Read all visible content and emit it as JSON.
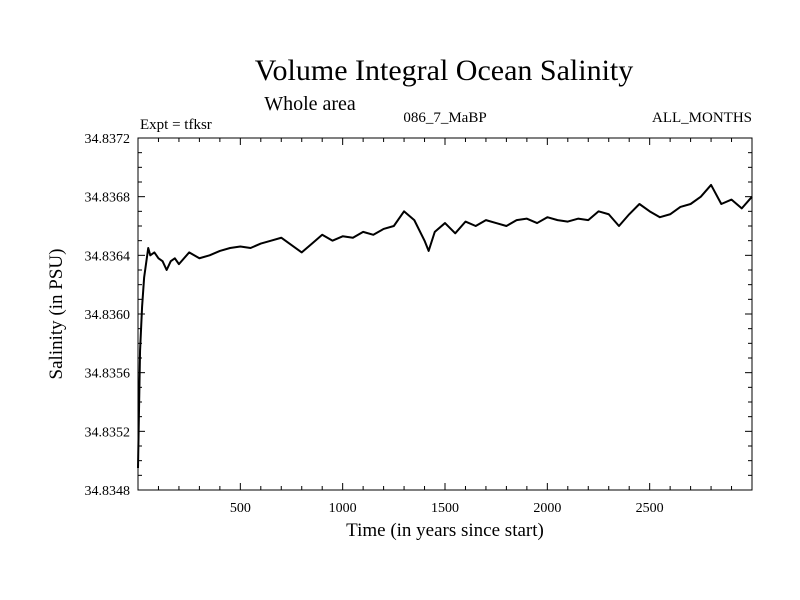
{
  "chart_data": {
    "type": "line",
    "title": "Volume Integral Ocean Salinity",
    "subtitle": "Whole area",
    "header_left": "Expt = tfksr",
    "header_center": "086_7_MaBP",
    "header_right": "ALL_MONTHS",
    "xlabel": "Time (in years since start)",
    "ylabel": "Salinity (in PSU)",
    "xlim": [
      0,
      3000
    ],
    "ylim": [
      34.8348,
      34.8372
    ],
    "xticks": [
      500,
      1000,
      1500,
      2000,
      2500
    ],
    "xtick_labels": [
      "500",
      "1000",
      "1500",
      "2000",
      "2500"
    ],
    "yticks": [
      34.8348,
      34.8352,
      34.8356,
      34.836,
      34.8364,
      34.8368,
      34.8372
    ],
    "ytick_labels": [
      "34.8348",
      "34.8352",
      "34.8356",
      "34.8360",
      "34.8364",
      "34.8368",
      "34.8372"
    ],
    "line_color": "#000000",
    "series": [
      {
        "name": "salinity",
        "x": [
          0,
          5,
          10,
          20,
          30,
          40,
          50,
          60,
          80,
          100,
          120,
          140,
          160,
          180,
          200,
          250,
          300,
          350,
          400,
          450,
          500,
          550,
          600,
          650,
          700,
          750,
          800,
          850,
          900,
          950,
          1000,
          1050,
          1100,
          1150,
          1200,
          1250,
          1300,
          1350,
          1400,
          1420,
          1450,
          1500,
          1550,
          1600,
          1650,
          1700,
          1750,
          1800,
          1850,
          1900,
          1950,
          2000,
          2050,
          2100,
          2150,
          2200,
          2250,
          2300,
          2350,
          2400,
          2450,
          2500,
          2550,
          2600,
          2650,
          2700,
          2750,
          2800,
          2850,
          2900,
          2950,
          3000
        ],
        "y": [
          34.83495,
          34.83535,
          34.83575,
          34.83605,
          34.83625,
          34.83635,
          34.83645,
          34.8364,
          34.83642,
          34.83638,
          34.83636,
          34.8363,
          34.83636,
          34.83638,
          34.83634,
          34.83642,
          34.83638,
          34.8364,
          34.83643,
          34.83645,
          34.83646,
          34.83645,
          34.83648,
          34.8365,
          34.83652,
          34.83647,
          34.83642,
          34.83648,
          34.83654,
          34.8365,
          34.83653,
          34.83652,
          34.83656,
          34.83654,
          34.83658,
          34.8366,
          34.8367,
          34.83664,
          34.8365,
          34.83643,
          34.83656,
          34.83662,
          34.83655,
          34.83663,
          34.8366,
          34.83664,
          34.83662,
          34.8366,
          34.83664,
          34.83665,
          34.83662,
          34.83666,
          34.83664,
          34.83663,
          34.83665,
          34.83664,
          34.8367,
          34.83668,
          34.8366,
          34.83668,
          34.83675,
          34.8367,
          34.83666,
          34.83668,
          34.83673,
          34.83675,
          34.8368,
          34.83688,
          34.83675,
          34.83678,
          34.83672,
          34.8368
        ]
      }
    ]
  }
}
